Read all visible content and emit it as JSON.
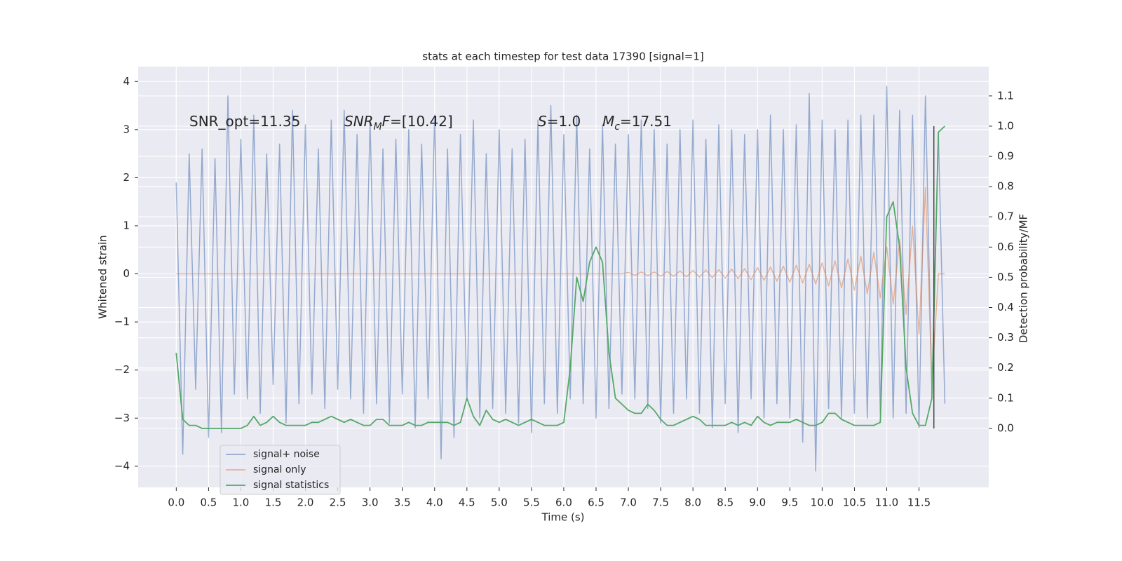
{
  "chart_data": {
    "type": "line",
    "title": "stats at each timestep for test data 17390 [signal=1]",
    "xlabel": "Time (s)",
    "ylabel": "Whitened strain",
    "y2label": "Detection probability/MF",
    "xlim": [
      -0.59,
      12.58
    ],
    "ylim": [
      -4.44,
      4.31
    ],
    "y2lim": [
      -0.195,
      1.197
    ],
    "xticks": [
      {
        "value": 0,
        "label": "0.0"
      },
      0.5,
      {
        "value": 1,
        "label": "1.0"
      },
      1.5,
      {
        "value": 2,
        "label": "2.0"
      },
      2.5,
      {
        "value": 3,
        "label": "3.0"
      },
      3.5,
      {
        "value": 4,
        "label": "4.0"
      },
      4.5,
      {
        "value": 5,
        "label": "5.0"
      },
      5.5,
      {
        "value": 6,
        "label": "6.0"
      },
      6.5,
      {
        "value": 7,
        "label": "7.0"
      },
      7.5,
      {
        "value": 8,
        "label": "8.0"
      },
      8.5,
      {
        "value": 9,
        "label": "9.0"
      },
      9.5,
      {
        "value": 10,
        "label": "10.0"
      },
      10.5,
      {
        "value": 11,
        "label": "11.0"
      },
      11.5
    ],
    "yticks": [
      {
        "value": -4,
        "label": "−4"
      },
      {
        "value": -3,
        "label": "−3"
      },
      {
        "value": -2,
        "label": "−2"
      },
      {
        "value": -1,
        "label": "−1"
      },
      0,
      1,
      2,
      3,
      4
    ],
    "y2ticks": [
      {
        "value": 0,
        "label": "0.0"
      },
      0.1,
      0.2,
      0.3,
      0.4,
      0.5,
      0.6,
      0.7,
      0.8,
      0.9,
      {
        "value": 1,
        "label": "1.0"
      },
      1.1
    ],
    "grid": true,
    "legend": "lower left",
    "x": [
      0,
      0.1,
      0.2,
      0.3,
      0.4,
      0.5,
      0.6,
      0.7,
      0.8,
      0.9,
      1,
      1.1,
      1.2,
      1.3,
      1.4,
      1.5,
      1.6,
      1.7,
      1.8,
      1.9,
      2,
      2.1,
      2.2,
      2.3,
      2.4,
      2.5,
      2.6,
      2.7,
      2.8,
      2.9,
      3,
      3.1,
      3.2,
      3.3,
      3.4,
      3.5,
      3.6,
      3.7,
      3.8,
      3.9,
      4,
      4.1,
      4.2,
      4.3,
      4.4,
      4.5,
      4.6,
      4.7,
      4.8,
      4.9,
      5,
      5.1,
      5.2,
      5.3,
      5.4,
      5.5,
      5.6,
      5.7,
      5.8,
      5.9,
      6,
      6.1,
      6.2,
      6.3,
      6.4,
      6.5,
      6.6,
      6.7,
      6.8,
      6.9,
      7,
      7.1,
      7.2,
      7.3,
      7.4,
      7.5,
      7.6,
      7.7,
      7.8,
      7.9,
      8,
      8.1,
      8.2,
      8.3,
      8.4,
      8.5,
      8.6,
      8.7,
      8.8,
      8.9,
      9,
      9.1,
      9.2,
      9.3,
      9.4,
      9.5,
      9.6,
      9.7,
      9.8,
      9.9,
      10,
      10.1,
      10.2,
      10.3,
      10.4,
      10.5,
      10.6,
      10.7,
      10.8,
      10.9,
      11,
      11.1,
      11.2,
      11.3,
      11.4,
      11.5,
      11.6,
      11.7,
      11.8,
      11.9
    ],
    "series": [
      {
        "name": "signal+ noise",
        "color": "#4c72b0",
        "axis": "y",
        "values": [
          1.9,
          -3.75,
          2.5,
          -2.4,
          2.6,
          -3.4,
          2.4,
          -3.3,
          3.7,
          -2.5,
          2.8,
          -2.6,
          3.3,
          -2.9,
          2.5,
          -2.3,
          2.7,
          -3.1,
          3.4,
          -2.7,
          3.1,
          -2.5,
          2.6,
          -2.8,
          3.2,
          -2.4,
          3.4,
          -2.6,
          2.9,
          -2.9,
          3.2,
          -2.7,
          2.6,
          -3.1,
          2.8,
          -2.5,
          3.0,
          -3.2,
          2.7,
          -2.6,
          3.3,
          -3.85,
          2.6,
          -3.4,
          2.9,
          -2.6,
          3.2,
          -3.0,
          2.5,
          -2.8,
          3.0,
          -2.9,
          2.6,
          -3.1,
          2.8,
          -3.3,
          3.2,
          -2.7,
          3.5,
          -2.9,
          2.9,
          -2.6,
          3.3,
          -2.7,
          2.6,
          -3.0,
          3.1,
          -2.8,
          2.7,
          -2.5,
          2.9,
          -2.6,
          3.2,
          -2.8,
          3.0,
          -3.1,
          2.7,
          -2.9,
          3.0,
          -2.6,
          3.2,
          -2.9,
          2.8,
          -3.2,
          3.1,
          -2.7,
          3.0,
          -3.3,
          2.9,
          -2.6,
          3.0,
          -3.0,
          3.3,
          -2.7,
          3.0,
          -3.0,
          3.1,
          -3.5,
          3.75,
          -4.1,
          3.2,
          -2.8,
          3.0,
          -3.0,
          3.2,
          -2.9,
          3.3,
          -3.0,
          3.3,
          -2.9,
          3.9,
          -3.0,
          3.4,
          -2.9,
          3.3,
          -3.2,
          3.7,
          -2.5,
          2.9,
          -2.7
        ]
      },
      {
        "name": "signal only",
        "color": "#dd8452",
        "axis": "y",
        "values": [
          0,
          0,
          0,
          0,
          0,
          0,
          0,
          0,
          0,
          0,
          0,
          0,
          0,
          0,
          0,
          0,
          0,
          0,
          0,
          0,
          0,
          0,
          0,
          0,
          0,
          0,
          0,
          0,
          0,
          0,
          0,
          0,
          0,
          0,
          0,
          0,
          0,
          0,
          0,
          0,
          0,
          0,
          0,
          0,
          0,
          0,
          0,
          0,
          0,
          0,
          0,
          0,
          0,
          0,
          0,
          0,
          0,
          0,
          0,
          0,
          0,
          0,
          0,
          0,
          0,
          0,
          0,
          0,
          0,
          0,
          0.03,
          -0.03,
          0.04,
          -0.04,
          0.04,
          -0.05,
          0.05,
          -0.05,
          0.06,
          -0.06,
          0.07,
          -0.07,
          0.08,
          -0.08,
          0.09,
          -0.09,
          0.1,
          -0.1,
          0.11,
          -0.12,
          0.13,
          -0.13,
          0.14,
          -0.15,
          0.16,
          -0.17,
          0.18,
          -0.19,
          0.2,
          -0.21,
          0.23,
          -0.25,
          0.27,
          -0.29,
          0.31,
          -0.34,
          0.37,
          -0.41,
          0.45,
          -0.5,
          0.56,
          -0.63,
          0.72,
          -0.84,
          1.0,
          -1.25,
          1.8,
          -2.3,
          0,
          0
        ]
      },
      {
        "name": "signal statistics",
        "color": "#55a868",
        "axis": "y2",
        "values": [
          0.25,
          0.03,
          0.01,
          0.01,
          0.0,
          0.0,
          0.0,
          0.0,
          0.0,
          0.0,
          0.0,
          0.01,
          0.04,
          0.01,
          0.02,
          0.04,
          0.02,
          0.01,
          0.01,
          0.01,
          0.01,
          0.02,
          0.02,
          0.03,
          0.04,
          0.03,
          0.02,
          0.03,
          0.02,
          0.01,
          0.01,
          0.03,
          0.03,
          0.01,
          0.01,
          0.01,
          0.02,
          0.01,
          0.01,
          0.02,
          0.02,
          0.02,
          0.02,
          0.01,
          0.02,
          0.1,
          0.04,
          0.01,
          0.06,
          0.03,
          0.02,
          0.03,
          0.02,
          0.01,
          0.02,
          0.03,
          0.02,
          0.01,
          0.01,
          0.01,
          0.02,
          0.2,
          0.5,
          0.42,
          0.55,
          0.6,
          0.55,
          0.25,
          0.1,
          0.08,
          0.06,
          0.05,
          0.05,
          0.08,
          0.06,
          0.03,
          0.01,
          0.01,
          0.02,
          0.03,
          0.04,
          0.03,
          0.01,
          0.01,
          0.01,
          0.01,
          0.02,
          0.01,
          0.02,
          0.01,
          0.04,
          0.02,
          0.01,
          0.02,
          0.02,
          0.02,
          0.03,
          0.02,
          0.01,
          0.01,
          0.02,
          0.05,
          0.05,
          0.03,
          0.02,
          0.01,
          0.01,
          0.01,
          0.01,
          0.02,
          0.7,
          0.75,
          0.6,
          0.2,
          0.05,
          0.01,
          0.01,
          0.1,
          0.98,
          1.0
        ]
      }
    ],
    "vline": {
      "x": 11.73,
      "y2": [
        0,
        1.0
      ],
      "color": "#444444"
    },
    "annotations": [
      [
        {
          "text": "SNR_opt=11.35"
        }
      ],
      [
        {
          "text": "SNR",
          "italic": true
        },
        {
          "text": "M",
          "italic": true,
          "sub": true
        },
        {
          "text": "F",
          "italic": true
        },
        {
          "text": "=[10.42]"
        }
      ],
      [
        {
          "text": "S",
          "italic": true
        },
        {
          "text": "=1.0"
        }
      ],
      [
        {
          "text": "M",
          "italic": true
        },
        {
          "text": "c",
          "italic": true,
          "sub": true
        },
        {
          "text": "=17.51"
        }
      ]
    ]
  }
}
